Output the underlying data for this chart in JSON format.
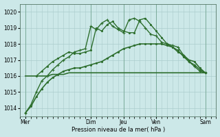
{
  "background_color": "#cce8e8",
  "grid_color": "#aacccc",
  "line_color": "#2d6e2d",
  "xlabel": "Pression niveau de la mer( hPa )",
  "ylim": [
    1013.5,
    1020.5
  ],
  "yticks": [
    1014,
    1015,
    1016,
    1017,
    1018,
    1019,
    1020
  ],
  "xlim": [
    0,
    36
  ],
  "day_labels": [
    "Mer",
    "Dim",
    "Jeu",
    "Ven",
    "Sam"
  ],
  "day_positions": [
    1,
    13,
    19,
    25,
    34
  ],
  "series": [
    {
      "x": [
        1,
        2,
        3,
        4,
        5,
        6,
        7,
        8,
        9,
        10,
        11,
        12,
        13,
        14,
        15,
        16,
        17,
        18,
        19,
        20,
        21,
        22,
        23,
        24,
        25,
        26,
        27,
        28,
        29,
        30,
        31,
        32,
        33,
        34
      ],
      "y": [
        1016.0,
        1016.0,
        1016.0,
        1016.0,
        1016.0,
        1016.1,
        1016.1,
        1016.1,
        1016.2,
        1016.2,
        1016.2,
        1016.2,
        1016.2,
        1016.2,
        1016.2,
        1016.2,
        1016.2,
        1016.2,
        1016.2,
        1016.2,
        1016.2,
        1016.2,
        1016.2,
        1016.2,
        1016.2,
        1016.2,
        1016.2,
        1016.2,
        1016.2,
        1016.2,
        1016.2,
        1016.2,
        1016.2,
        1016.2
      ],
      "marker": null,
      "linestyle": "-",
      "linewidth": 1.2
    },
    {
      "x": [
        1,
        2,
        3,
        4,
        5,
        6,
        7,
        8,
        9,
        10,
        11,
        12,
        13,
        14,
        15,
        16,
        17,
        18,
        19,
        20,
        21,
        22,
        23,
        24,
        25,
        26,
        27,
        28,
        29,
        30,
        31,
        32,
        33,
        34
      ],
      "y": [
        1013.7,
        1014.1,
        1014.7,
        1015.2,
        1015.6,
        1015.9,
        1016.1,
        1016.3,
        1016.4,
        1016.5,
        1016.5,
        1016.6,
        1016.7,
        1016.8,
        1016.9,
        1017.1,
        1017.3,
        1017.5,
        1017.7,
        1017.8,
        1017.9,
        1018.0,
        1018.0,
        1018.0,
        1018.0,
        1018.0,
        1017.9,
        1017.8,
        1017.5,
        1017.3,
        1017.0,
        1016.9,
        1016.5,
        1016.2
      ],
      "marker": ".",
      "linestyle": "-",
      "linewidth": 1.2
    },
    {
      "x": [
        1,
        2,
        3,
        4,
        5,
        6,
        7,
        8,
        9,
        10,
        11,
        12,
        13,
        14,
        15,
        16,
        17,
        18,
        19,
        20,
        21,
        22,
        23,
        24,
        25,
        26,
        27,
        28,
        29,
        30,
        31,
        32,
        33,
        34
      ],
      "y": [
        1013.7,
        1014.2,
        1015.0,
        1015.7,
        1016.0,
        1016.4,
        1016.7,
        1017.0,
        1017.2,
        1017.5,
        1017.6,
        1017.7,
        1019.1,
        1018.9,
        1019.3,
        1019.5,
        1019.1,
        1018.9,
        1018.7,
        1019.5,
        1019.6,
        1019.4,
        1019.0,
        1018.6,
        1018.5,
        1018.1,
        1018.0,
        1017.9,
        1017.8,
        1017.3,
        1016.9,
        1016.6,
        1016.3,
        1016.2
      ],
      "marker": "+",
      "linestyle": "-",
      "linewidth": 1.0
    },
    {
      "x": [
        3,
        4,
        5,
        6,
        7,
        8,
        9,
        10,
        11,
        12,
        13,
        14,
        15,
        16,
        17,
        18,
        19,
        20,
        21,
        22,
        23,
        24,
        25,
        26,
        27,
        28,
        29,
        30,
        31,
        32,
        33,
        34
      ],
      "y": [
        1016.0,
        1016.3,
        1016.6,
        1016.9,
        1017.1,
        1017.3,
        1017.5,
        1017.4,
        1017.4,
        1017.5,
        1017.6,
        1019.0,
        1018.8,
        1019.2,
        1019.4,
        1019.0,
        1018.8,
        1018.7,
        1018.7,
        1019.5,
        1019.6,
        1019.2,
        1018.8,
        1018.4,
        1018.0,
        1017.8,
        1017.6,
        1017.2,
        1016.9,
        1016.7,
        1016.4,
        1016.2
      ],
      "marker": ".",
      "linestyle": "-",
      "linewidth": 1.0
    }
  ]
}
